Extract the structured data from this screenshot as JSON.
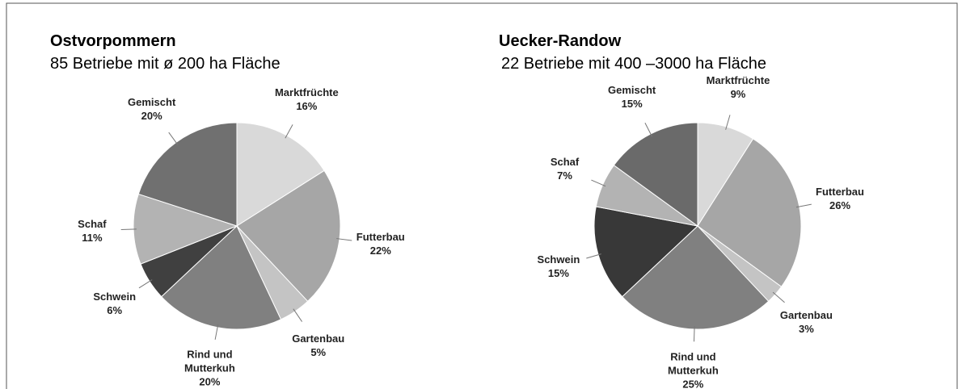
{
  "chart_data": [
    {
      "type": "pie",
      "title": "Ostvorpommern",
      "subtitle": "85 Betriebe mit ø 200 ha Fläche",
      "categories": [
        "Marktfrüchte",
        "Futterbau",
        "Gartenbau",
        "Rind und Mutterkuh",
        "Schwein",
        "Schaf",
        "Gemischt"
      ],
      "values": [
        16,
        22,
        5,
        20,
        6,
        11,
        20
      ],
      "value_labels": [
        "16%",
        "22%",
        "5%",
        "20%",
        "6%",
        "11%",
        "20%"
      ],
      "colors": [
        "#d9d9d9",
        "#a6a6a6",
        "#c4c4c4",
        "#808080",
        "#404040",
        "#b3b3b3",
        "#707070"
      ]
    },
    {
      "type": "pie",
      "title": "Uecker-Randow",
      "subtitle": "22 Betriebe mit 400 –3000 ha Fläche",
      "categories": [
        "Marktfrüchte",
        "Futterbau",
        "Gartenbau",
        "Rind und Mutterkuh",
        "Schwein",
        "Schaf",
        "Gemischt"
      ],
      "values": [
        9,
        26,
        3,
        25,
        15,
        7,
        15
      ],
      "value_labels": [
        "9%",
        "26%",
        "3%",
        "25%",
        "15%",
        "7%",
        "15%"
      ],
      "colors": [
        "#d9d9d9",
        "#a6a6a6",
        "#c4c4c4",
        "#808080",
        "#383838",
        "#b3b3b3",
        "#6a6a6a"
      ]
    }
  ]
}
